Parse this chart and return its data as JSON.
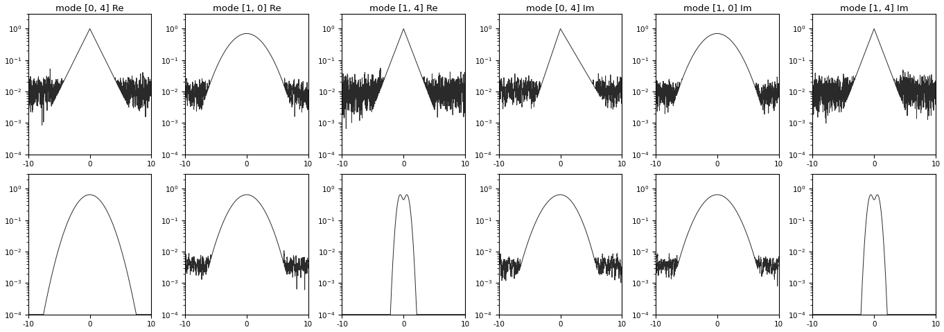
{
  "titles": [
    "mode [0, 4] Re",
    "mode [1, 0] Re",
    "mode [1, 4] Re",
    "mode [0, 4] Im",
    "mode [1, 0] Im",
    "mode [1, 4] Im"
  ],
  "xlim": [
    -10,
    10
  ],
  "ylim": [
    0.0001,
    3
  ],
  "xticks": [
    -10,
    0,
    10
  ],
  "line_color": "#2a2a2a",
  "figsize": [
    13.62,
    4.79
  ],
  "dpi": 100
}
